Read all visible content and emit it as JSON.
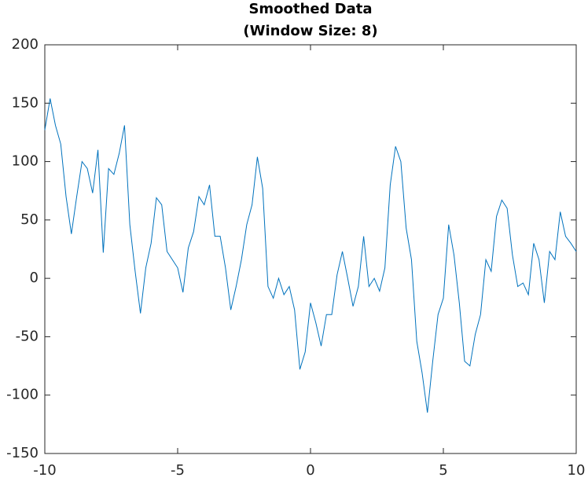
{
  "chart_data": {
    "type": "line",
    "title": "Smoothed Data",
    "subtitle": "(Window Size: 8)",
    "x": [
      -10,
      -9.8,
      -9.6,
      -9.4,
      -9.2,
      -9,
      -8.8,
      -8.6,
      -8.4,
      -8.2,
      -8,
      -7.8,
      -7.6,
      -7.4,
      -7.2,
      -7,
      -6.8,
      -6.6,
      -6.4,
      -6.2,
      -6,
      -5.8,
      -5.6,
      -5.4,
      -5.2,
      -5,
      -4.8,
      -4.6,
      -4.4,
      -4.2,
      -4,
      -3.8,
      -3.6,
      -3.4,
      -3.2,
      -3,
      -2.8,
      -2.6,
      -2.4,
      -2.2,
      -2,
      -1.8,
      -1.6,
      -1.4,
      -1.2,
      -1,
      -0.8,
      -0.6,
      -0.4,
      -0.2,
      0,
      0.2,
      0.4,
      0.6,
      0.8,
      1,
      1.2,
      1.4,
      1.6,
      1.8,
      2,
      2.2,
      2.4,
      2.6,
      2.8,
      3,
      3.2,
      3.4,
      3.6,
      3.8,
      4,
      4.2,
      4.4,
      4.6,
      4.8,
      5,
      5.2,
      5.4,
      5.6,
      5.8,
      6,
      6.2,
      6.4,
      6.6,
      6.8,
      7,
      7.2,
      7.4,
      7.6,
      7.8,
      8,
      8.2,
      8.4,
      8.6,
      8.8,
      9,
      9.2,
      9.4,
      9.6,
      9.8,
      10
    ],
    "series": [
      {
        "color": "#0072bd",
        "values": [
          127,
          154,
          131,
          115,
          70,
          38,
          70,
          100,
          94,
          73,
          110,
          22,
          94,
          89,
          107,
          131,
          46,
          6,
          -30,
          9,
          30,
          69,
          63,
          23,
          16,
          9,
          -12,
          26,
          40,
          70,
          63,
          80,
          36,
          36,
          9,
          -27,
          -7,
          16,
          46,
          63,
          104,
          77,
          -7,
          -17,
          0,
          -14,
          -7,
          -27,
          -78,
          -63,
          -21,
          -38,
          -58,
          -31,
          -31,
          3,
          23,
          0,
          -24,
          -7,
          36,
          -7,
          0,
          -11,
          9,
          80,
          113,
          100,
          43,
          16,
          -54,
          -81,
          -115,
          -71,
          -31,
          -17,
          46,
          20,
          -21,
          -71,
          -75,
          -48,
          -31,
          16,
          6,
          53,
          67,
          60,
          20,
          -7,
          -4,
          -14,
          30,
          16,
          -21,
          23,
          16,
          57,
          36,
          30,
          23
        ]
      }
    ],
    "xlim": [
      -10,
      10
    ],
    "ylim": [
      -150,
      200
    ],
    "xticks": [
      -10,
      -5,
      0,
      5,
      10
    ],
    "yticks": [
      -150,
      -100,
      -50,
      0,
      50,
      100,
      150,
      200
    ]
  }
}
